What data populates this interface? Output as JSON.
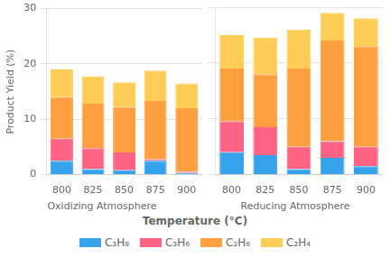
{
  "chart_data": [
    {
      "type": "bar",
      "stacked": true,
      "title": "Oxidizing Atmosphere",
      "xlabel": "Temperature (°C)",
      "ylabel": "Product Yield (%)",
      "categories": [
        "800",
        "825",
        "850",
        "875",
        "900"
      ],
      "series": [
        {
          "name": "C₃H₈",
          "color": "#36a2eb",
          "values": [
            2.5,
            1.0,
            0.8,
            2.5,
            0.3
          ]
        },
        {
          "name": "C₃H₆",
          "color": "#ff6384",
          "values": [
            4.0,
            3.8,
            3.2,
            0.3,
            0.2
          ]
        },
        {
          "name": "C₂H₆",
          "color": "#ff9f40",
          "values": [
            7.5,
            8.0,
            8.2,
            10.5,
            11.5
          ]
        },
        {
          "name": "C₂H₄",
          "color": "#ffcd56",
          "values": [
            5.0,
            5.0,
            4.5,
            5.5,
            4.5
          ]
        }
      ],
      "ylim": [
        0,
        30
      ],
      "yticks": [
        0,
        10,
        20,
        30
      ],
      "grid": true,
      "legend": "bottom"
    },
    {
      "type": "bar",
      "stacked": true,
      "title": "Reducing Atmosphere",
      "categories": [
        "800",
        "825",
        "850",
        "875",
        "900"
      ],
      "series": [
        {
          "name": "C₃H₈",
          "color": "#36a2eb",
          "values": [
            4.0,
            3.5,
            1.0,
            3.0,
            1.5
          ]
        },
        {
          "name": "C₃H₆",
          "color": "#ff6384",
          "values": [
            5.5,
            5.0,
            4.0,
            3.0,
            3.5
          ]
        },
        {
          "name": "C₂H₆",
          "color": "#ff9f40",
          "values": [
            9.5,
            9.5,
            14.0,
            18.0,
            18.0
          ]
        },
        {
          "name": "C₂H₄",
          "color": "#ffcd56",
          "values": [
            6.0,
            6.5,
            7.0,
            5.0,
            5.0
          ]
        }
      ],
      "ylim": [
        0,
        30
      ],
      "yticks": [
        0,
        10,
        20,
        30
      ],
      "grid": true,
      "tick_labels": "x"
    }
  ]
}
